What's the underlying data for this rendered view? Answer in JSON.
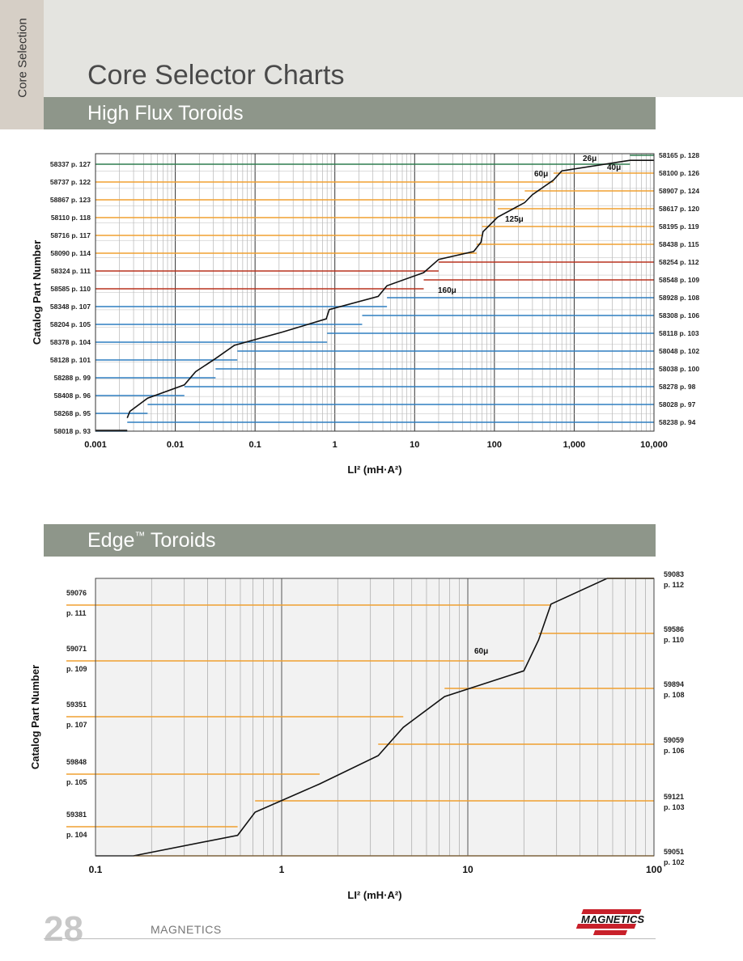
{
  "side_tab": "Core Selection",
  "page_title": "Core Selector Charts",
  "sections": {
    "high_flux": "High Flux Toroids",
    "edge_name": "Edge",
    "edge_tm": "™",
    "edge_rest": " Toroids"
  },
  "footer": {
    "page_number": "28",
    "brand": "MAGNETICS",
    "logo": "MAGNETICS"
  },
  "colors": {
    "green": "#2e7d4f",
    "orange": "#f0a030",
    "red": "#b8321e",
    "blue": "#2f7fc0",
    "purple": "#7b2a9a",
    "curve": "#111111"
  },
  "chart_data": [
    {
      "type": "line",
      "title": "High Flux Toroids",
      "xlabel": "LI² (mH·A²)",
      "ylabel": "Catalog Part Number",
      "x_scale": "log",
      "xlim": [
        0.001,
        10000
      ],
      "x_ticks": [
        0.001,
        0.01,
        0.1,
        1,
        10,
        100,
        1000,
        10000
      ],
      "x_tick_labels": [
        "0.001",
        "0.01",
        "0.1",
        "1",
        "10",
        "100",
        "1,000",
        "10,000"
      ],
      "grid": true,
      "bands": [
        {
          "left": "58018 p. 93",
          "right": "58238 p. 94",
          "color": "blue",
          "boundary_x": 0.0025
        },
        {
          "left": "58268 p. 95",
          "right": "58028 p. 97",
          "color": "blue",
          "boundary_x": 0.0045
        },
        {
          "left": "58408 p. 96",
          "right": "58278 p. 98",
          "color": "blue",
          "boundary_x": 0.013
        },
        {
          "left": "58288 p. 99",
          "right": "58038 p. 100",
          "color": "blue",
          "boundary_x": 0.032
        },
        {
          "left": "58128 p. 101",
          "right": "58048 p. 102",
          "color": "blue",
          "boundary_x": 0.06
        },
        {
          "left": "58378 p. 104",
          "right": "58118 p. 103",
          "color": "blue",
          "boundary_x": 0.8
        },
        {
          "left": "58204 p. 105",
          "right": "58308 p. 106",
          "color": "blue",
          "boundary_x": 2.2
        },
        {
          "left": "58348 p. 107",
          "right": "58928 p. 108",
          "color": "blue",
          "boundary_x": 4.5
        },
        {
          "left": "58585 p. 110",
          "right": "58548 p. 109",
          "color": "red",
          "boundary_x": 13
        },
        {
          "left": "58324 p. 111",
          "right": "58254 p. 112",
          "color": "red",
          "boundary_x": 20
        },
        {
          "left": "58090 p. 114",
          "right": "58438 p. 115",
          "color": "orange",
          "boundary_x": 60
        },
        {
          "left": "58716 p. 117",
          "right": "58195 p. 119",
          "color": "orange",
          "boundary_x": 70
        },
        {
          "left": "58110 p. 118",
          "right": "58617 p. 120",
          "color": "orange",
          "boundary_x": 110
        },
        {
          "left": "58867 p. 123",
          "right": "58907 p. 124",
          "color": "orange",
          "boundary_x": 240
        },
        {
          "left": "58737 p. 122",
          "right": "58100 p. 126",
          "color": "orange",
          "boundary_x": 550
        },
        {
          "left": "58337 p. 127",
          "right": "58165 p. 128",
          "color": "green",
          "boundary_x": 5000
        }
      ],
      "annotations": [
        "160μ",
        "125μ",
        "60μ",
        "26μ",
        "40μ"
      ],
      "series": [
        {
          "x": [
            0.0025,
            0.0027,
            0.0045,
            0.013,
            0.018,
            0.032,
            0.055,
            0.22,
            0.78,
            0.85,
            3.5,
            4.5,
            13,
            20,
            55,
            68,
            72,
            110,
            240,
            300,
            550,
            700,
            5000,
            10000
          ],
          "y": [
            1,
            1.5,
            2.5,
            3.5,
            4.5,
            5.5,
            6.5,
            7.5,
            8.5,
            9.2,
            10.2,
            11,
            12,
            13,
            13.6,
            14.3,
            15.1,
            16.2,
            17.3,
            17.9,
            19,
            19.7,
            20.5,
            20.5
          ]
        }
      ]
    },
    {
      "type": "line",
      "title": "Edge™ Toroids",
      "xlabel": "LI² (mH·A²)",
      "ylabel": "Catalog Part Number",
      "x_scale": "log",
      "xlim": [
        0.1,
        100
      ],
      "x_ticks": [
        0.1,
        1,
        10,
        100
      ],
      "x_tick_labels": [
        "0.1",
        "1",
        "10",
        "100"
      ],
      "grid": true,
      "annotations": [
        "60μ"
      ],
      "left_labels": [
        [
          "59381",
          "p. 104"
        ],
        [
          "59848",
          "p. 105"
        ],
        [
          "59351",
          "p. 107"
        ],
        [
          "59071",
          "p. 109"
        ],
        [
          "59076",
          "p. 111"
        ]
      ],
      "right_labels": [
        [
          "59051",
          "p. 102"
        ],
        [
          "59121",
          "p. 103"
        ],
        [
          "59059",
          "p. 106"
        ],
        [
          "59894",
          "p. 108"
        ],
        [
          "59586",
          "p. 110"
        ],
        [
          "59083",
          "p. 112"
        ]
      ],
      "series": [
        {
          "x": [
            0.16,
            0.58,
            0.72,
            1.6,
            3.3,
            4.5,
            7.5,
            20,
            24,
            28,
            56,
            100
          ],
          "y": [
            0,
            0.4,
            0.85,
            1.4,
            1.95,
            2.5,
            3.1,
            3.6,
            4.2,
            4.9,
            5.4,
            5.4
          ]
        }
      ]
    }
  ]
}
